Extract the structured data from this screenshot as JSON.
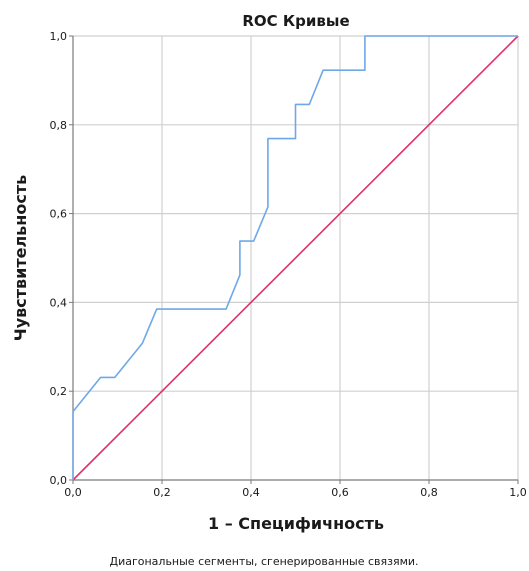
{
  "chart_data": {
    "type": "line",
    "title": "ROC Кривые",
    "xlabel": "1 – Специфичность",
    "ylabel": "Чувствительность",
    "xlim": [
      0,
      1
    ],
    "ylim": [
      0,
      1
    ],
    "grid": true,
    "x_ticks": [
      "0,0",
      "0,2",
      "0,4",
      "0,6",
      "0,8",
      "1,0"
    ],
    "y_ticks": [
      "0,0",
      "0,2",
      "0,4",
      "0,6",
      "0,8",
      "1,0"
    ],
    "footnote": "Диагональные сегменты, сгенерированные связями.",
    "colors": {
      "roc_curve": "#6fa8e8",
      "reference_line": "#e0306a",
      "grid": "#d0d0d0",
      "axis": "#7a7a7a"
    },
    "series": [
      {
        "values": [
          [
            0.0,
            0.0
          ],
          [
            0.0,
            0.154
          ],
          [
            0.062,
            0.231
          ],
          [
            0.094,
            0.231
          ],
          [
            0.156,
            0.308
          ],
          [
            0.188,
            0.385
          ],
          [
            0.344,
            0.385
          ],
          [
            0.375,
            0.462
          ],
          [
            0.375,
            0.538
          ],
          [
            0.406,
            0.538
          ],
          [
            0.438,
            0.615
          ],
          [
            0.438,
            0.769
          ],
          [
            0.5,
            0.769
          ],
          [
            0.5,
            0.846
          ],
          [
            0.531,
            0.846
          ],
          [
            0.562,
            0.923
          ],
          [
            0.656,
            0.923
          ],
          [
            0.656,
            1.0
          ],
          [
            1.0,
            1.0
          ]
        ]
      },
      {
        "values": [
          [
            0.0,
            0.0
          ],
          [
            1.0,
            1.0
          ]
        ]
      }
    ]
  }
}
